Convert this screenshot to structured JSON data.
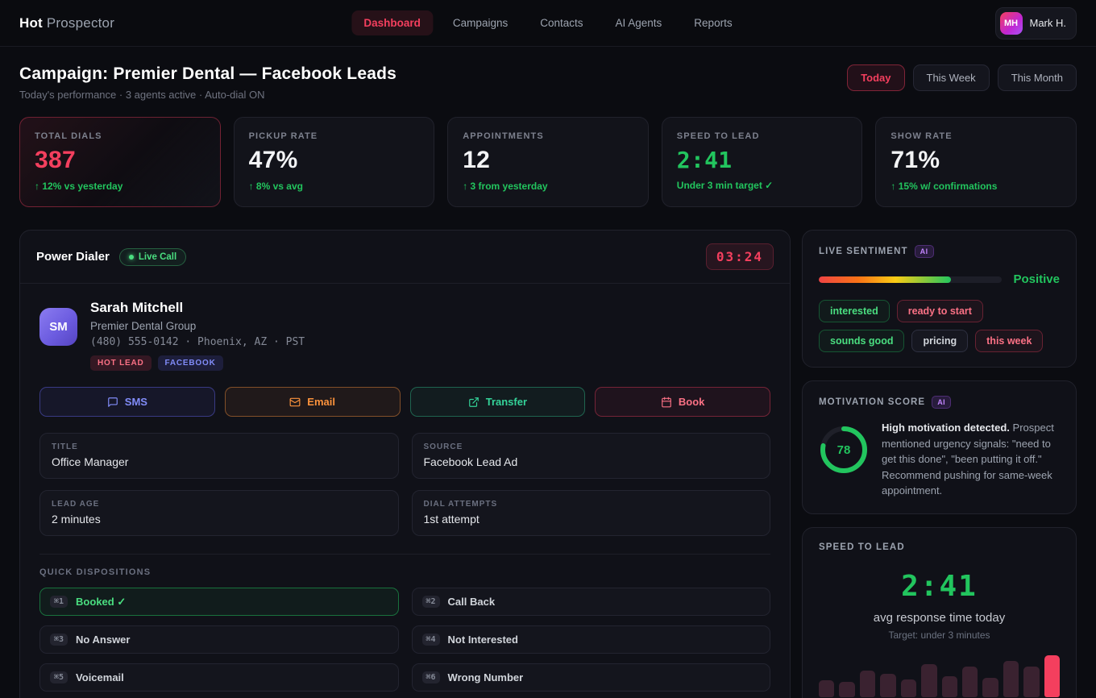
{
  "nav": {
    "brand_bold": "Hot",
    "brand_light": "Prospector",
    "items": [
      {
        "label": "Dashboard"
      },
      {
        "label": "Campaigns"
      },
      {
        "label": "Contacts"
      },
      {
        "label": "AI Agents"
      },
      {
        "label": "Reports"
      }
    ],
    "user": {
      "initials": "MH",
      "name": "Mark H."
    }
  },
  "header": {
    "title": "Campaign: Premier Dental — Facebook Leads",
    "subtitle": "Today's performance · 3 agents active · Auto-dial ON",
    "periods": [
      {
        "label": "Today"
      },
      {
        "label": "This Week"
      },
      {
        "label": "This Month"
      }
    ]
  },
  "stats": [
    {
      "label": "TOTAL DIALS",
      "value": "387",
      "delta": "↑ 12% vs yesterday"
    },
    {
      "label": "PICKUP RATE",
      "value": "47%",
      "delta": "↑ 8% vs avg"
    },
    {
      "label": "APPOINTMENTS",
      "value": "12",
      "delta": "↑ 3 from yesterday"
    },
    {
      "label": "SPEED TO LEAD",
      "value": "2:41",
      "delta": "Under 3 min target ✓"
    },
    {
      "label": "SHOW RATE",
      "value": "71%",
      "delta": "↑ 15% w/ confirmations"
    }
  ],
  "dialer": {
    "title": "Power Dialer",
    "live_badge": "Live Call",
    "timer": "03:24",
    "contact": {
      "initials": "SM",
      "name": "Sarah Mitchell",
      "company": "Premier Dental Group",
      "phone_line": "(480) 555-0142 · Phoenix, AZ · PST",
      "tags": [
        {
          "label": "HOT LEAD"
        },
        {
          "label": "FACEBOOK"
        }
      ]
    },
    "actions": [
      {
        "label": "SMS"
      },
      {
        "label": "Email"
      },
      {
        "label": "Transfer"
      },
      {
        "label": "Book"
      }
    ],
    "fields": [
      {
        "label": "TITLE",
        "value": "Office Manager"
      },
      {
        "label": "SOURCE",
        "value": "Facebook Lead Ad"
      },
      {
        "label": "LEAD AGE",
        "value": "2 minutes"
      },
      {
        "label": "DIAL ATTEMPTS",
        "value": "1st attempt"
      }
    ],
    "dispositions_title": "QUICK DISPOSITIONS",
    "dispositions": [
      {
        "key": "⌘1",
        "label": "Booked ✓"
      },
      {
        "key": "⌘2",
        "label": "Call Back"
      },
      {
        "key": "⌘3",
        "label": "No Answer"
      },
      {
        "key": "⌘4",
        "label": "Not Interested"
      },
      {
        "key": "⌘5",
        "label": "Voicemail"
      },
      {
        "key": "⌘6",
        "label": "Wrong Number"
      }
    ]
  },
  "sentiment": {
    "title": "LIVE SENTIMENT",
    "ai_badge": "AI",
    "value_label": "Positive",
    "fill_pct": 72,
    "keywords": [
      {
        "label": "interested",
        "tone": "positive"
      },
      {
        "label": "ready to start",
        "tone": "hot"
      },
      {
        "label": "sounds good",
        "tone": "positive"
      },
      {
        "label": "pricing",
        "tone": "neutral"
      },
      {
        "label": "this week",
        "tone": "hot"
      }
    ]
  },
  "motivation": {
    "title": "MOTIVATION SCORE",
    "ai_badge": "AI",
    "score": 78,
    "summary_bold": "High motivation detected.",
    "summary_rest": " Prospect mentioned urgency signals: \"need to get this done\", \"been putting it off.\" Recommend pushing for same-week appointment."
  },
  "speed": {
    "title": "SPEED TO LEAD",
    "value": "2:41",
    "caption": "avg response time today",
    "target": "Target: under 3 minutes",
    "bars": [
      40,
      35,
      62,
      55,
      42,
      78,
      50,
      72,
      46,
      86,
      73,
      100
    ]
  },
  "colors": {
    "accent_rose": "#f43f5e",
    "accent_green": "#22c55e",
    "accent_indigo": "#818cf8",
    "accent_orange": "#fb923c",
    "accent_purple": "#c084fc",
    "bar_dim": "#3a2230",
    "bar_highlight": "#f43f5e"
  }
}
